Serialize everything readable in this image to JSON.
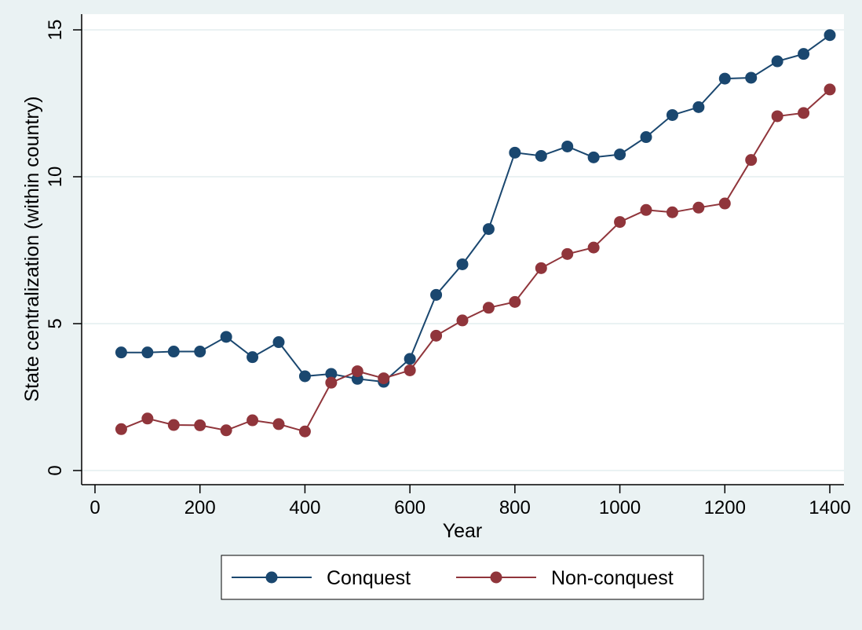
{
  "chart_data": {
    "type": "line",
    "title": "",
    "xlabel": "Year",
    "ylabel": "State centralization (within country)",
    "xlim": [
      0,
      1400
    ],
    "ylim": [
      0,
      15
    ],
    "xticks": [
      0,
      200,
      400,
      600,
      800,
      1000,
      1200,
      1400
    ],
    "yticks": [
      0,
      5,
      10,
      15
    ],
    "grid": "horizontal",
    "legend_position": "bottom",
    "x": [
      50,
      100,
      150,
      200,
      250,
      300,
      350,
      400,
      450,
      500,
      550,
      600,
      650,
      700,
      750,
      800,
      850,
      900,
      950,
      1000,
      1050,
      1100,
      1150,
      1200,
      1250,
      1300,
      1350,
      1400
    ],
    "series": [
      {
        "name": "Conquest",
        "color": "#1a476f",
        "values": [
          4.02,
          4.02,
          4.05,
          4.05,
          4.55,
          3.86,
          4.37,
          3.21,
          3.29,
          3.12,
          3.02,
          3.8,
          5.98,
          7.02,
          8.22,
          10.82,
          10.71,
          11.03,
          10.66,
          10.76,
          11.35,
          12.1,
          12.37,
          13.34,
          13.37,
          13.93,
          14.18,
          14.82
        ]
      },
      {
        "name": "Non-conquest",
        "color": "#90353b",
        "values": [
          1.41,
          1.77,
          1.55,
          1.54,
          1.37,
          1.71,
          1.58,
          1.33,
          2.99,
          3.38,
          3.14,
          3.41,
          4.59,
          5.11,
          5.54,
          5.74,
          6.89,
          7.37,
          7.59,
          8.46,
          8.87,
          8.79,
          8.95,
          9.09,
          10.57,
          12.06,
          12.17,
          12.97
        ]
      }
    ]
  }
}
